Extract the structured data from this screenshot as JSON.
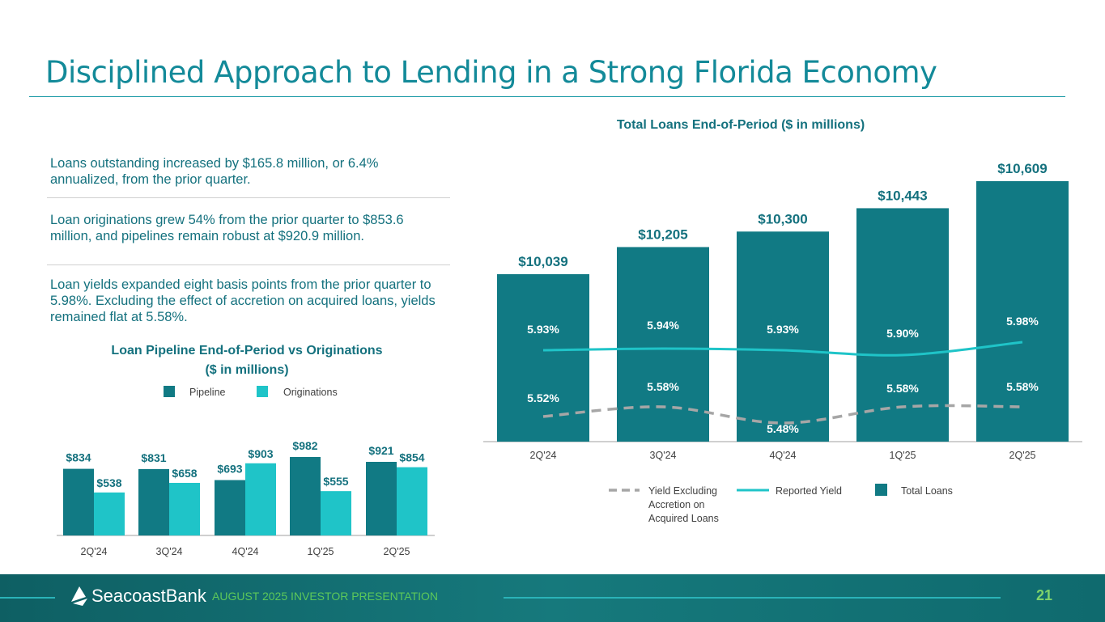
{
  "title": "Disciplined Approach to Lending in a Strong Florida Economy",
  "bullets": [
    "Loans outstanding increased by $165.8 million, or 6.4% annualized, from the prior quarter.",
    "Loan originations grew 54% from the prior quarter to $853.6 million, and pipelines remain robust at $920.9 million.",
    "Loan yields expanded eight basis points from the prior quarter to 5.98%. Excluding the effect of accretion on acquired loans, yields remained flat at 5.58%."
  ],
  "footer": {
    "logo": "SeacoastBank",
    "presentation": "AUGUST 2025 INVESTOR PRESENTATION",
    "page": "21"
  },
  "colors": {
    "dark_teal": "#117a84",
    "light_teal": "#1fc4c8",
    "gray_dash": "#a6a6a6",
    "title": "#138a99"
  },
  "chart_data": [
    {
      "type": "bar",
      "title": "Loan Pipeline End-of-Period vs Originations",
      "subtitle": "($ in millions)",
      "categories": [
        "2Q'24",
        "3Q'24",
        "4Q'24",
        "1Q'25",
        "2Q'25"
      ],
      "series": [
        {
          "name": "Pipeline",
          "values": [
            834,
            831,
            693,
            982,
            921
          ],
          "labels": [
            "$834",
            "$831",
            "$693",
            "$982",
            "$921"
          ]
        },
        {
          "name": "Originations",
          "values": [
            538,
            658,
            903,
            555,
            854
          ],
          "labels": [
            "$538",
            "$658",
            "$903",
            "$555",
            "$854"
          ]
        }
      ],
      "legend": "top"
    },
    {
      "type": "bar+line",
      "title": "Total Loans End-of-Period ($ in millions)",
      "categories": [
        "2Q'24",
        "3Q'24",
        "4Q'24",
        "1Q'25",
        "2Q'25"
      ],
      "series": [
        {
          "name": "Total Loans",
          "type": "bar",
          "values": [
            10039,
            10205,
            10300,
            10443,
            10609
          ],
          "labels": [
            "$10,039",
            "$10,205",
            "$10,300",
            "$10,443",
            "$10,609"
          ]
        },
        {
          "name": "Reported Yield",
          "type": "line",
          "values": [
            5.93,
            5.94,
            5.93,
            5.9,
            5.98
          ],
          "labels": [
            "5.93%",
            "5.94%",
            "5.93%",
            "5.90%",
            "5.98%"
          ]
        },
        {
          "name": "Yield Excluding Accretion on Acquired Loans",
          "type": "dashed-line",
          "values": [
            5.52,
            5.58,
            5.48,
            5.58,
            5.58
          ],
          "labels": [
            "5.52%",
            "5.58%",
            "5.48%",
            "5.58%",
            "5.58%"
          ]
        }
      ],
      "legend_labels": [
        "Yield Excluding",
        "Accretion on",
        "Acquired Loans",
        "Reported Yield",
        "Total Loans"
      ],
      "legend": "bottom"
    }
  ]
}
